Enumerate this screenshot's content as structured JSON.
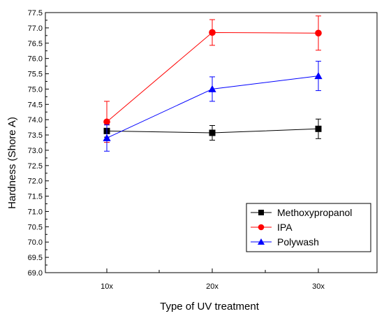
{
  "chart_data": {
    "type": "line",
    "xlabel": "Type of UV treatment",
    "ylabel": "Hardness (Shore A)",
    "categories": [
      "10x",
      "20x",
      "30x"
    ],
    "ylim": [
      69.0,
      77.5
    ],
    "ytick_step": 0.5,
    "yticks": [
      "69.0",
      "69.5",
      "70.0",
      "70.5",
      "71.0",
      "71.5",
      "72.0",
      "72.5",
      "73.0",
      "73.5",
      "74.0",
      "74.5",
      "75.0",
      "75.5",
      "76.0",
      "76.5",
      "77.0",
      "77.5"
    ],
    "legend_position": "bottom-right",
    "series": [
      {
        "name": "Methoxypropanol",
        "color": "#000000",
        "marker": "square",
        "values": [
          73.63,
          73.57,
          73.7
        ],
        "errors": [
          0.2,
          0.24,
          0.32
        ]
      },
      {
        "name": "IPA",
        "color": "#ff0000",
        "marker": "circle",
        "values": [
          73.93,
          76.85,
          76.83
        ],
        "errors": [
          0.67,
          0.42,
          0.56
        ]
      },
      {
        "name": "Polywash",
        "color": "#0000ff",
        "marker": "triangle",
        "values": [
          73.4,
          75.0,
          75.43
        ],
        "errors": [
          0.43,
          0.4,
          0.48
        ]
      }
    ]
  }
}
